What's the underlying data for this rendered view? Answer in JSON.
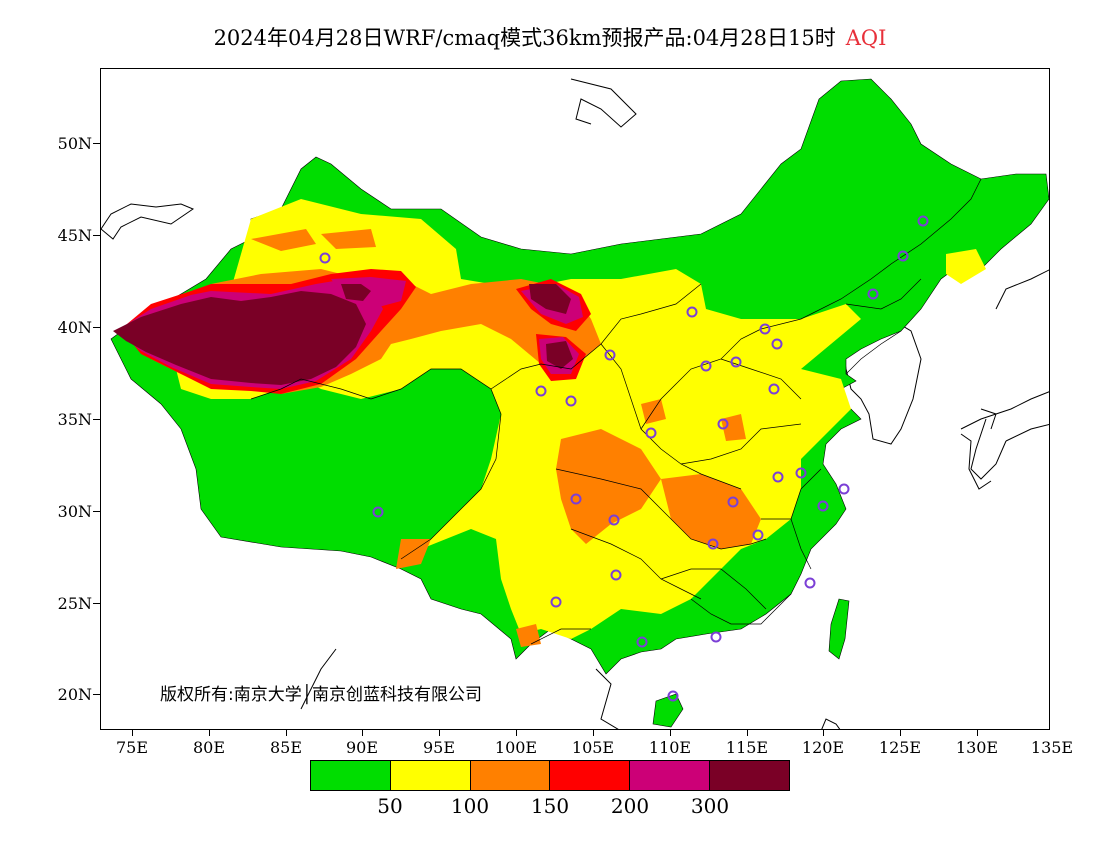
{
  "title": {
    "text": "2024年04月28日WRF/cmaq模式36km预报产品:04月28日15时",
    "variable": "AQI"
  },
  "axes": {
    "lat_labels": [
      "50N",
      "45N",
      "40N",
      "35N",
      "30N",
      "25N",
      "20N"
    ],
    "lon_labels": [
      "75E",
      "80E",
      "85E",
      "90E",
      "95E",
      "100E",
      "105E",
      "110E",
      "115E",
      "120E",
      "125E",
      "130E",
      "135E"
    ]
  },
  "copyright": "版权所有:南京大学│南京创蓝科技有限公司",
  "legend": {
    "colors": [
      "#00dd00",
      "#ffff00",
      "#ff8000",
      "#ff0000",
      "#cc0077",
      "#7a0026"
    ],
    "labels": [
      "50",
      "100",
      "150",
      "200",
      "300"
    ]
  },
  "map_colors": {
    "good": "#00dd00",
    "moderate": "#ffff00",
    "sensitive": "#ff8000",
    "unhealthy": "#ff0000",
    "very_unhealthy": "#cc0077",
    "hazardous": "#7a0026",
    "station_marker": "#7b3fd6"
  }
}
